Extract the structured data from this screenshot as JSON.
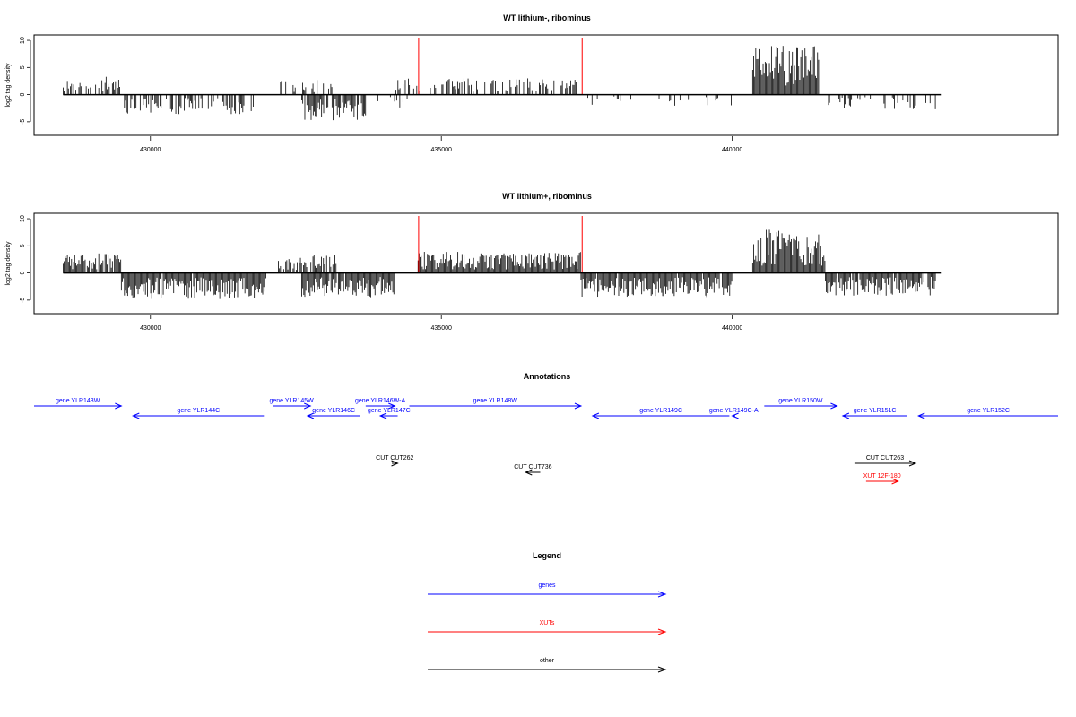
{
  "chart_data": [
    {
      "type": "bar",
      "title": "WT lithium-, ribominus",
      "ylabel": "log2 tag density",
      "xlabel": "",
      "xlim": [
        428000,
        445600
      ],
      "ylim": [
        -7.5,
        11
      ],
      "x_ticks": [
        430000,
        435000,
        440000
      ],
      "x_tick_labels": [
        "430000",
        "435000",
        "440000"
      ],
      "y_ticks": [
        -5,
        0,
        5,
        10
      ],
      "y_tick_labels": [
        "-5",
        "0",
        "5",
        "10"
      ],
      "highlight_lines_x": [
        434610,
        437420
      ],
      "highlight_color": "#ff0000",
      "seed": 11,
      "segments": [
        {
          "x0": 428500,
          "x1": 429500,
          "sign": 1,
          "amp": 2.2,
          "density": 0.45
        },
        {
          "x0": 429500,
          "x1": 431800,
          "sign": -1,
          "amp": 2.4,
          "density": 0.55
        },
        {
          "x0": 432200,
          "x1": 433200,
          "sign": 1,
          "amp": 1.8,
          "density": 0.35
        },
        {
          "x0": 432600,
          "x1": 433700,
          "sign": -1,
          "amp": 3.2,
          "density": 0.85
        },
        {
          "x0": 433800,
          "x1": 434500,
          "sign": -1,
          "amp": 1.6,
          "density": 0.3
        },
        {
          "x0": 434200,
          "x1": 437400,
          "sign": 1,
          "amp": 2.0,
          "density": 0.5
        },
        {
          "x0": 437500,
          "x1": 440000,
          "sign": -1,
          "amp": 1.4,
          "density": 0.15
        },
        {
          "x0": 440350,
          "x1": 441500,
          "sign": 1,
          "amp": 6.0,
          "density": 1.0
        },
        {
          "x0": 441600,
          "x1": 443500,
          "sign": -1,
          "amp": 1.8,
          "density": 0.3
        }
      ]
    },
    {
      "type": "bar",
      "title": "WT lithium+, ribominus",
      "ylabel": "log2 tag density",
      "xlabel": "",
      "xlim": [
        428000,
        445600
      ],
      "ylim": [
        -7.5,
        11
      ],
      "x_ticks": [
        430000,
        435000,
        440000
      ],
      "x_tick_labels": [
        "430000",
        "435000",
        "440000"
      ],
      "y_ticks": [
        -5,
        0,
        5,
        10
      ],
      "y_tick_labels": [
        "-5",
        "0",
        "5",
        "10"
      ],
      "highlight_lines_x": [
        434610,
        437420
      ],
      "highlight_color": "#ff0000",
      "seed": 23,
      "segments": [
        {
          "x0": 428500,
          "x1": 429500,
          "sign": 1,
          "amp": 2.4,
          "density": 0.9
        },
        {
          "x0": 429500,
          "x1": 432000,
          "sign": -1,
          "amp": 3.2,
          "density": 0.95
        },
        {
          "x0": 432200,
          "x1": 433200,
          "sign": 1,
          "amp": 2.2,
          "density": 0.7
        },
        {
          "x0": 432600,
          "x1": 434200,
          "sign": -1,
          "amp": 3.0,
          "density": 0.95
        },
        {
          "x0": 434600,
          "x1": 437400,
          "sign": 1,
          "amp": 2.6,
          "density": 1.0
        },
        {
          "x0": 437400,
          "x1": 440000,
          "sign": -1,
          "amp": 3.0,
          "density": 0.95
        },
        {
          "x0": 440350,
          "x1": 441600,
          "sign": 1,
          "amp": 5.4,
          "density": 1.0
        },
        {
          "x0": 441600,
          "x1": 443500,
          "sign": -1,
          "amp": 2.8,
          "density": 0.9
        }
      ]
    },
    {
      "type": "table",
      "title": "Annotations",
      "xlim": [
        428000,
        445600
      ],
      "features": [
        {
          "label": "gene YLR143W",
          "start": 428000,
          "end": 429500,
          "strand": "+",
          "kind": "gene",
          "row": 0
        },
        {
          "label": "gene YLR144C",
          "start": 429700,
          "end": 431950,
          "strand": "-",
          "kind": "gene",
          "row": 1
        },
        {
          "label": "gene YLR145W",
          "start": 432100,
          "end": 432750,
          "strand": "+",
          "kind": "gene",
          "row": 0
        },
        {
          "label": "gene YLR146C",
          "start": 432700,
          "end": 433600,
          "strand": "-",
          "kind": "gene",
          "row": 1
        },
        {
          "label": "gene YLR146W-A",
          "start": 433700,
          "end": 434200,
          "strand": "+",
          "kind": "gene",
          "row": 0
        },
        {
          "label": "gene YLR147C",
          "start": 433950,
          "end": 434250,
          "strand": "-",
          "kind": "gene",
          "row": 1
        },
        {
          "label": "gene YLR148W",
          "start": 434450,
          "end": 437400,
          "strand": "+",
          "kind": "gene",
          "row": 0
        },
        {
          "label": "gene YLR149C",
          "start": 437600,
          "end": 439950,
          "strand": "-",
          "kind": "gene",
          "row": 1
        },
        {
          "label": "gene YLR149C-A",
          "start": 440000,
          "end": 440050,
          "strand": "-",
          "kind": "gene",
          "row": 1
        },
        {
          "label": "gene YLR150W",
          "start": 440550,
          "end": 441800,
          "strand": "+",
          "kind": "gene",
          "row": 0
        },
        {
          "label": "gene YLR151C",
          "start": 441900,
          "end": 443000,
          "strand": "-",
          "kind": "gene",
          "row": 1
        },
        {
          "label": "gene YLR152C",
          "start": 443200,
          "end": 445600,
          "strand": "-",
          "kind": "gene",
          "row": 1
        },
        {
          "label": "CUT CUT262",
          "start": 434150,
          "end": 434250,
          "strand": "+",
          "kind": "other",
          "row": 2
        },
        {
          "label": "CUT CUT736",
          "start": 436450,
          "end": 436700,
          "strand": "-",
          "kind": "other",
          "row": 3
        },
        {
          "label": "CUT CUT263",
          "start": 442100,
          "end": 443150,
          "strand": "+",
          "kind": "other",
          "row": 2
        },
        {
          "label": "XUT 12F-180",
          "start": 442300,
          "end": 442850,
          "strand": "+",
          "kind": "xut",
          "row": 4
        }
      ]
    },
    {
      "type": "table",
      "title": "Legend",
      "entries": [
        {
          "label": "genes",
          "color": "#0000ff"
        },
        {
          "label": "XUTs",
          "color": "#ff0000"
        },
        {
          "label": "other",
          "color": "#000000"
        }
      ]
    }
  ],
  "colors": {
    "gene": "#0000ff",
    "xut": "#ff0000",
    "other": "#000000",
    "axis": "#000000"
  }
}
